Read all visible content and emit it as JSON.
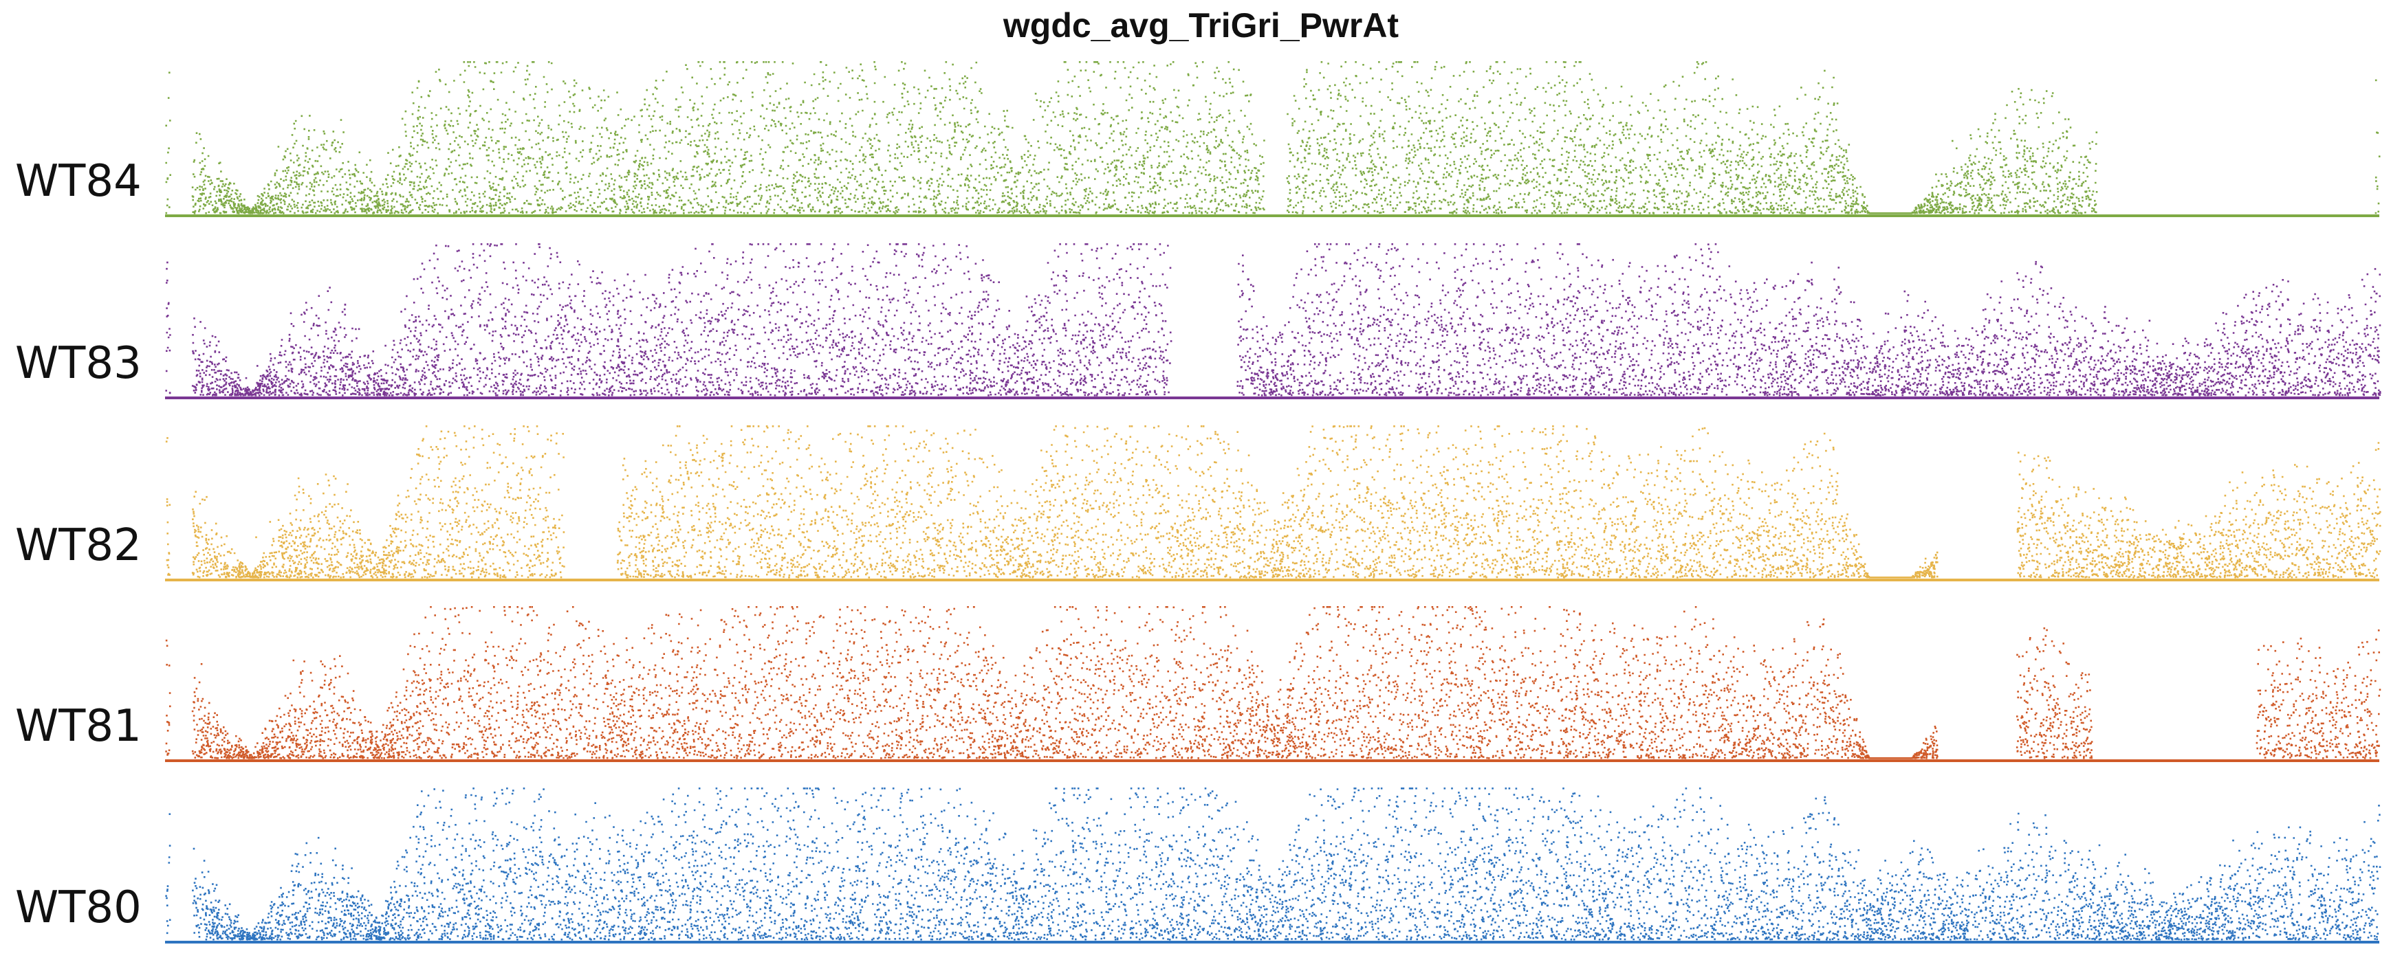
{
  "chart_data": {
    "type": "scatter",
    "title": "wgdc_avg_TriGri_PwrAt",
    "xlabel": "",
    "ylabel": "",
    "grid": false,
    "legend": "none",
    "x_range": [
      0,
      1000
    ],
    "y_range": [
      0,
      1
    ],
    "series": [
      {
        "name": "WT84",
        "color": "#7EAA45",
        "seed": 84,
        "envelope": [
          0.8,
          0.35,
          0.02,
          0.45,
          0.55,
          0.12,
          0.75,
          0.82,
          0.86,
          0.8,
          0.7,
          0.6,
          0.78,
          0.82,
          0.86,
          0.84,
          0.78,
          0.85,
          0.8,
          0.82,
          0.4,
          0.86,
          0.85,
          0.84,
          0.8,
          0.86,
          0.3,
          0.84,
          0.85,
          0.86,
          0.82,
          0.86,
          0.8,
          0.84,
          0.7,
          0.65,
          0.85,
          0.6,
          0.55,
          0.8,
          0.0,
          0.0,
          0.3,
          0.55,
          0.7,
          0.45,
          0.4,
          0.02,
          0.35,
          0.55,
          0.6,
          0.5,
          0.7
        ],
        "gaps": [
          [
            0.1,
            0.6
          ],
          [
            24.8,
            25.3
          ],
          [
            43.6,
            46.5
          ],
          [
            46.4,
            49.9
          ]
        ]
      },
      {
        "name": "WT83",
        "color": "#7A3793",
        "seed": 83,
        "envelope": [
          0.8,
          0.35,
          0.02,
          0.45,
          0.55,
          0.12,
          0.75,
          0.82,
          0.86,
          0.8,
          0.7,
          0.6,
          0.78,
          0.82,
          0.86,
          0.84,
          0.78,
          0.85,
          0.8,
          0.82,
          0.4,
          0.86,
          0.85,
          0.84,
          0.8,
          0.86,
          0.3,
          0.84,
          0.85,
          0.86,
          0.82,
          0.86,
          0.8,
          0.84,
          0.7,
          0.65,
          0.85,
          0.6,
          0.55,
          0.8,
          0.3,
          0.55,
          0.3,
          0.55,
          0.7,
          0.45,
          0.4,
          0.25,
          0.35,
          0.55,
          0.6,
          0.5,
          0.7
        ],
        "gaps": [
          [
            0.1,
            0.6
          ],
          [
            22.7,
            24.2
          ]
        ]
      },
      {
        "name": "WT82",
        "color": "#E6B44A",
        "seed": 82,
        "envelope": [
          0.8,
          0.35,
          0.02,
          0.45,
          0.55,
          0.12,
          0.75,
          0.82,
          0.86,
          0.8,
          0.7,
          0.6,
          0.78,
          0.82,
          0.86,
          0.84,
          0.78,
          0.85,
          0.8,
          0.82,
          0.4,
          0.86,
          0.85,
          0.84,
          0.8,
          0.86,
          0.3,
          0.84,
          0.85,
          0.86,
          0.82,
          0.86,
          0.8,
          0.84,
          0.7,
          0.65,
          0.85,
          0.6,
          0.55,
          0.8,
          0.0,
          0.0,
          0.3,
          0.55,
          0.7,
          0.45,
          0.4,
          0.25,
          0.35,
          0.55,
          0.6,
          0.5,
          0.7
        ],
        "gaps": [
          [
            0.1,
            0.6
          ],
          [
            9.0,
            10.2
          ],
          [
            40.0,
            41.8
          ]
        ]
      },
      {
        "name": "WT81",
        "color": "#D05A28",
        "seed": 81,
        "envelope": [
          0.8,
          0.35,
          0.02,
          0.45,
          0.55,
          0.12,
          0.75,
          0.82,
          0.86,
          0.8,
          0.7,
          0.6,
          0.78,
          0.82,
          0.86,
          0.84,
          0.78,
          0.85,
          0.8,
          0.82,
          0.4,
          0.86,
          0.85,
          0.84,
          0.8,
          0.86,
          0.3,
          0.84,
          0.85,
          0.86,
          0.82,
          0.86,
          0.8,
          0.84,
          0.7,
          0.65,
          0.85,
          0.6,
          0.55,
          0.8,
          0.0,
          0.0,
          0.3,
          0.55,
          0.7,
          0.45,
          0.4,
          0.25,
          0.35,
          0.55,
          0.6,
          0.5,
          0.7
        ],
        "gaps": [
          [
            0.1,
            0.6
          ],
          [
            40.0,
            41.8
          ],
          [
            43.5,
            47.2
          ]
        ]
      },
      {
        "name": "WT80",
        "color": "#2E74C0",
        "seed": 80,
        "envelope": [
          0.8,
          0.35,
          0.02,
          0.45,
          0.55,
          0.12,
          0.75,
          0.82,
          0.86,
          0.8,
          0.7,
          0.6,
          0.78,
          0.82,
          0.86,
          0.84,
          0.78,
          0.85,
          0.8,
          0.82,
          0.4,
          0.86,
          0.85,
          0.84,
          0.8,
          0.86,
          0.3,
          0.84,
          0.85,
          0.86,
          0.82,
          0.86,
          0.8,
          0.84,
          0.7,
          0.65,
          0.85,
          0.6,
          0.55,
          0.8,
          0.3,
          0.55,
          0.3,
          0.55,
          0.7,
          0.45,
          0.4,
          0.25,
          0.35,
          0.55,
          0.6,
          0.5,
          0.7
        ],
        "gaps": [
          [
            0.1,
            0.6
          ]
        ]
      }
    ]
  }
}
